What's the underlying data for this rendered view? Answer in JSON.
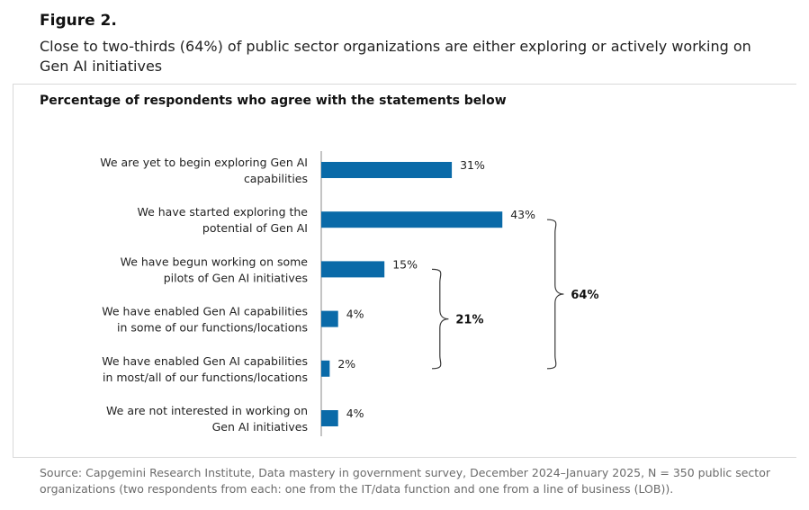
{
  "figure_label": "Figure 2.",
  "headline": "Close to two-thirds (64%) of public sector organizations are either exploring or actively working on Gen AI initiatives",
  "source_note": "Source: Capgemini Research Institute, Data mastery in government survey, December 2024–January 2025, N = 350 public sector organizations (two respondents from each: one from the IT/data function and one from a line of business (LOB)).",
  "colors": {
    "bar": "#0a6aa8",
    "bracket": "#3a3a3a",
    "text": "#222222"
  },
  "chart_data": {
    "type": "bar",
    "orientation": "horizontal",
    "title": "Percentage of respondents who agree with the statements below",
    "xlabel": "",
    "ylabel": "",
    "xlim": [
      0,
      50
    ],
    "unit": "%",
    "categories": [
      [
        "We are yet to begin exploring Gen AI",
        "capabilities"
      ],
      [
        "We have started exploring the",
        "potential of Gen AI"
      ],
      [
        "We have begun working on some",
        "pilots of Gen AI initiatives"
      ],
      [
        "We have enabled Gen AI capabilities",
        "in some of our functions/locations"
      ],
      [
        "We have enabled Gen AI capabilities",
        "in most/all of our functions/locations"
      ],
      [
        "We are not interested in working on",
        "Gen AI initiatives"
      ]
    ],
    "values": [
      31,
      43,
      15,
      4,
      2,
      4
    ],
    "value_labels": [
      "31%",
      "43%",
      "15%",
      "4%",
      "2%",
      "4%"
    ],
    "groups": [
      {
        "label": "21%",
        "from_index": 2,
        "to_index": 4,
        "value": 21
      },
      {
        "label": "64%",
        "from_index": 1,
        "to_index": 4,
        "value": 64
      }
    ]
  }
}
